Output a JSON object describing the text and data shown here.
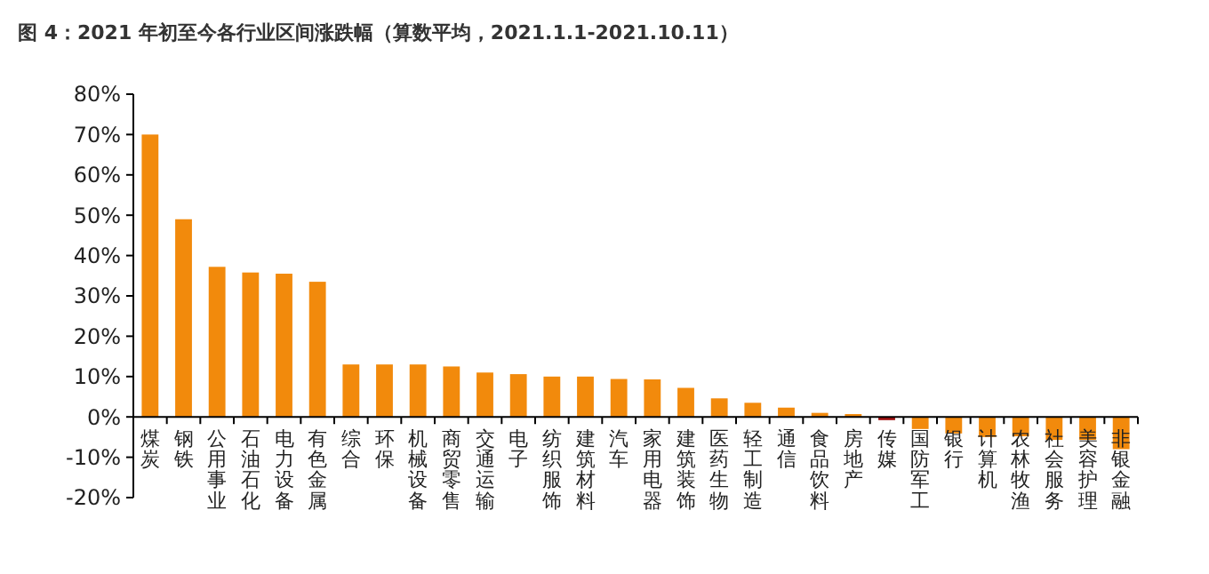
{
  "chart_data": {
    "type": "bar",
    "title": "图 4：2021 年初至今各行业区间涨跌幅（算数平均，2021.1.1-2021.10.11）",
    "categories": [
      "煤炭",
      "钢铁",
      "公用事业",
      "石油石化",
      "电力设备",
      "有色金属",
      "综合",
      "环保",
      "机械设备",
      "商贸零售",
      "交通运输",
      "电子",
      "纺织服饰",
      "建筑材料",
      "汽车",
      "家用电器",
      "建筑装饰",
      "医药生物",
      "轻工制造",
      "通信",
      "食品饮料",
      "房地产",
      "传媒",
      "国防军工",
      "银行",
      "计算机",
      "农林牧渔",
      "社会服务",
      "美容护理",
      "非银金融"
    ],
    "values": [
      70,
      49,
      37.2,
      35.8,
      35.5,
      33.5,
      13,
      13,
      13,
      12.5,
      11,
      10.6,
      10,
      10,
      9.4,
      9.3,
      7.2,
      4.6,
      3.5,
      2.3,
      1,
      0.7,
      -0.8,
      -3,
      -4.1,
      -5,
      -4.8,
      -5.7,
      -5.7,
      -8
    ],
    "colors": [
      "#f28a0c",
      "#f28a0c",
      "#f28a0c",
      "#f28a0c",
      "#f28a0c",
      "#f28a0c",
      "#f28a0c",
      "#f28a0c",
      "#f28a0c",
      "#f28a0c",
      "#f28a0c",
      "#f28a0c",
      "#f28a0c",
      "#f28a0c",
      "#f28a0c",
      "#f28a0c",
      "#f28a0c",
      "#f28a0c",
      "#f28a0c",
      "#f28a0c",
      "#f28a0c",
      "#f28a0c",
      "#a01010",
      "#f28a0c",
      "#f28a0c",
      "#f28a0c",
      "#f28a0c",
      "#f28a0c",
      "#f28a0c",
      "#f28a0c"
    ],
    "ylim": [
      -20,
      80
    ],
    "yticks": [
      {
        "value": -20,
        "label": "-20%"
      },
      {
        "value": -10,
        "label": "-10%"
      },
      {
        "value": 0,
        "label": "0%"
      },
      {
        "value": 10,
        "label": "10%"
      },
      {
        "value": 20,
        "label": "20%"
      },
      {
        "value": 30,
        "label": "30%"
      },
      {
        "value": 40,
        "label": "40%"
      },
      {
        "value": 50,
        "label": "50%"
      },
      {
        "value": 60,
        "label": "60%"
      },
      {
        "value": 70,
        "label": "70%"
      },
      {
        "value": 80,
        "label": "80%"
      }
    ]
  }
}
